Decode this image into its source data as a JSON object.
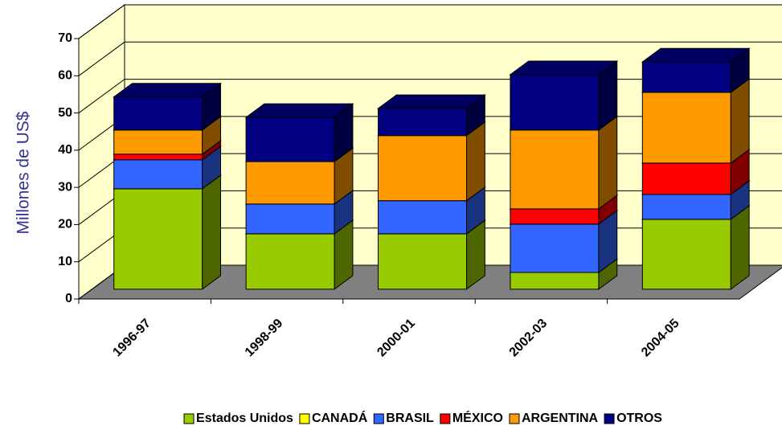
{
  "chart_data": {
    "type": "bar3d_stacked",
    "y_axis_label": "Millones de US$",
    "categories": [
      "1996-97",
      "1998-99",
      "2000-01",
      "2002-03",
      "2004-05"
    ],
    "series": [
      {
        "name": "Estados Unidos",
        "color": "#99cc00",
        "values": [
          27,
          14.9,
          14.9,
          4.5,
          18.8
        ]
      },
      {
        "name": "CANADÁ",
        "color": "#ffff00",
        "values": [
          0,
          0,
          0,
          0,
          0
        ]
      },
      {
        "name": "BRASIL",
        "color": "#3366ff",
        "values": [
          7.8,
          8,
          8.9,
          13,
          6.7
        ]
      },
      {
        "name": "MÉXICO",
        "color": "#ff0000",
        "values": [
          1.5,
          0,
          0,
          4.1,
          8.4
        ]
      },
      {
        "name": "ARGENTINA",
        "color": "#ff9900",
        "values": [
          6.5,
          11.4,
          17.5,
          21.2,
          19
        ]
      },
      {
        "name": "OTROS",
        "color": "#000080",
        "values": [
          8.9,
          11.9,
          7.3,
          14.9,
          8.2
        ]
      }
    ],
    "ylim": [
      0,
      70
    ],
    "yticks": [
      0,
      10,
      20,
      30,
      40,
      50,
      60,
      70
    ],
    "grid": true,
    "legend": "bottom"
  }
}
